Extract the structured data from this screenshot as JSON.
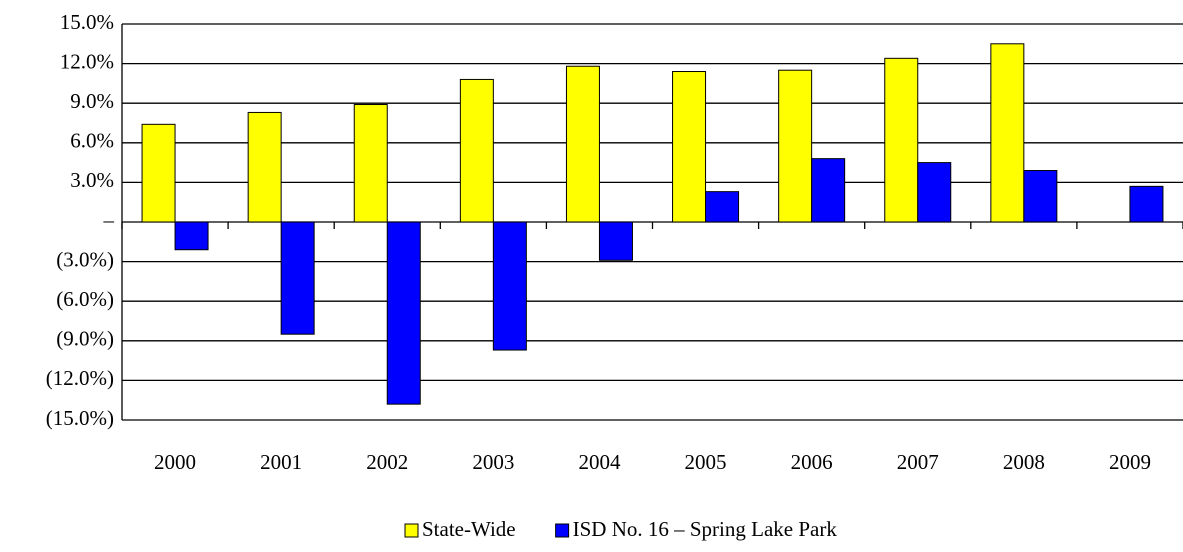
{
  "chart_data": {
    "type": "bar",
    "categories": [
      "2000",
      "2001",
      "2002",
      "2003",
      "2004",
      "2005",
      "2006",
      "2007",
      "2008",
      "2009"
    ],
    "series": [
      {
        "name": "State-Wide",
        "color": "#ffff00",
        "values": [
          7.4,
          8.3,
          8.9,
          10.8,
          11.8,
          11.4,
          11.5,
          12.4,
          13.5,
          null
        ]
      },
      {
        "name": "ISD No. 16 – Spring Lake Park",
        "color": "#0000ff",
        "values": [
          -2.1,
          -8.5,
          -13.8,
          -9.7,
          -2.9,
          2.3,
          4.8,
          4.5,
          3.9,
          2.7
        ]
      }
    ],
    "ylim": [
      -15,
      15
    ],
    "yticks": [
      {
        "value": -15,
        "label": "(15.0%)"
      },
      {
        "value": -12,
        "label": "(12.0%)"
      },
      {
        "value": -9,
        "label": "(9.0%)"
      },
      {
        "value": -6,
        "label": "(6.0%)"
      },
      {
        "value": -3,
        "label": "(3.0%)"
      },
      {
        "value": 0,
        "label": "–"
      },
      {
        "value": 3,
        "label": "3.0%"
      },
      {
        "value": 6,
        "label": "6.0%"
      },
      {
        "value": 9,
        "label": "9.0%"
      },
      {
        "value": 12,
        "label": "12.0%"
      },
      {
        "value": 15,
        "label": "15.0%"
      }
    ],
    "grid": true,
    "legend": "bottom"
  }
}
